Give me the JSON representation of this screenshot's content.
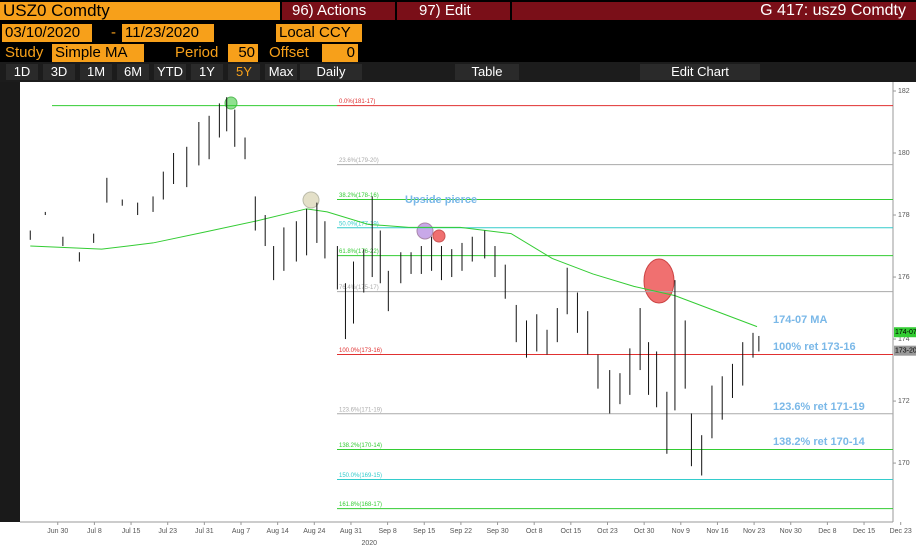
{
  "header": {
    "security": "USZ0 Comdty",
    "actions": "96) Actions",
    "edit": "97) Edit",
    "page": "G 417: usz9 Comdty"
  },
  "controls": {
    "start": "03/10/2020",
    "dash": "-",
    "end": "11/23/2020",
    "currency": "Local CCY",
    "study_label": "Study",
    "study": "Simple MA",
    "period_label": "Period",
    "period": "50",
    "offset_label": "Offset",
    "offset": "0"
  },
  "toolbar": {
    "ranges": [
      "1D",
      "3D",
      "1M",
      "6M",
      "YTD",
      "1Y",
      "5Y",
      "Max"
    ],
    "frequency": "Daily",
    "table": "Table",
    "edit_chart": "Edit Chart"
  },
  "chart_data": {
    "type": "ohlc",
    "xlabel": "2020",
    "xlim": [
      -1.03,
      22.79
    ],
    "xticks": [
      {
        "value": 0,
        "label": "Jun 30"
      },
      {
        "value": 1,
        "label": "Jul 8"
      },
      {
        "value": 2,
        "label": "Jul 15"
      },
      {
        "value": 3,
        "label": "Jul 23"
      },
      {
        "value": 4,
        "label": "Jul 31"
      },
      {
        "value": 5,
        "label": "Aug 7"
      },
      {
        "value": 6,
        "label": "Aug 14"
      },
      {
        "value": 7,
        "label": "Aug 24"
      },
      {
        "value": 8,
        "label": "Aug 31"
      },
      {
        "value": 9,
        "label": "Sep 8"
      },
      {
        "value": 10,
        "label": "Sep 15"
      },
      {
        "value": 11,
        "label": "Sep 22"
      },
      {
        "value": 12,
        "label": "Sep 30"
      },
      {
        "value": 13,
        "label": "Oct 8"
      },
      {
        "value": 14,
        "label": "Oct 15"
      },
      {
        "value": 15,
        "label": "Oct 23"
      },
      {
        "value": 16,
        "label": "Oct 30"
      },
      {
        "value": 17,
        "label": "Nov 9"
      },
      {
        "value": 18,
        "label": "Nov 16"
      },
      {
        "value": 19,
        "label": "Nov 23"
      },
      {
        "value": 20,
        "label": "Nov 30"
      },
      {
        "value": 21,
        "label": "Dec 8"
      },
      {
        "value": 22,
        "label": "Dec 15"
      },
      {
        "value": 23,
        "label": "Dec 23"
      }
    ],
    "ylim": [
      168.1,
      182.29
    ],
    "yticks": [
      170,
      172,
      174,
      176,
      178,
      180,
      182
    ],
    "bars": {
      "color": "#111111",
      "x": [
        -0.75,
        -0.34,
        0.14,
        0.59,
        0.98,
        1.34,
        1.76,
        2.18,
        2.6,
        2.88,
        3.16,
        3.52,
        3.85,
        4.13,
        4.41,
        4.61,
        4.83,
        5.11,
        5.39,
        5.66,
        5.89,
        6.17,
        6.51,
        6.79,
        7.07,
        7.29,
        7.63,
        7.85,
        8.07,
        8.35,
        8.58,
        8.8,
        9.02,
        9.36,
        9.64,
        9.92,
        10.2,
        10.47,
        10.75,
        11.03,
        11.31,
        11.65,
        11.93,
        12.21,
        12.51,
        12.79,
        13.07,
        13.35,
        13.63,
        13.9,
        14.18,
        14.46,
        14.74,
        15.06,
        15.34,
        15.61,
        15.89,
        16.12,
        16.34,
        16.62,
        16.84,
        17.12,
        17.29,
        17.57,
        17.85,
        18.13,
        18.41,
        18.69,
        18.97,
        19.13
      ],
      "high": [
        177.5,
        178.1,
        177.3,
        176.8,
        177.4,
        179.2,
        178.5,
        178.4,
        178.6,
        179.4,
        180.0,
        180.2,
        181.0,
        181.2,
        181.6,
        181.8,
        181.4,
        180.5,
        178.6,
        178.0,
        177.0,
        177.6,
        177.8,
        178.2,
        178.4,
        177.8,
        177.0,
        175.8,
        176.5,
        176.9,
        178.6,
        177.5,
        176.2,
        176.8,
        176.8,
        177.0,
        177.3,
        177.0,
        176.9,
        177.1,
        177.3,
        177.5,
        177.0,
        176.4,
        175.1,
        174.6,
        174.8,
        174.3,
        175.0,
        176.3,
        175.5,
        174.9,
        173.5,
        173.0,
        172.9,
        173.7,
        175.0,
        173.9,
        173.6,
        172.3,
        175.9,
        174.6,
        171.6,
        170.9,
        172.5,
        172.8,
        173.2,
        173.9,
        174.2,
        174.1
      ],
      "low": [
        177.2,
        178.0,
        177.0,
        176.5,
        177.1,
        178.4,
        178.3,
        178.0,
        178.1,
        178.5,
        179.0,
        178.9,
        179.6,
        179.8,
        180.5,
        180.7,
        180.2,
        179.8,
        177.5,
        177.0,
        175.9,
        176.2,
        176.5,
        176.7,
        177.1,
        176.6,
        175.6,
        174.0,
        174.5,
        175.5,
        176.0,
        175.8,
        174.9,
        175.8,
        176.1,
        176.1,
        176.2,
        175.9,
        176.0,
        176.2,
        176.5,
        176.6,
        176.0,
        175.3,
        173.9,
        173.4,
        173.6,
        173.5,
        173.9,
        174.8,
        174.2,
        173.5,
        172.4,
        171.6,
        171.9,
        172.2,
        173.0,
        172.2,
        171.8,
        170.3,
        171.7,
        172.4,
        169.9,
        169.6,
        170.8,
        171.4,
        172.1,
        172.5,
        173.4,
        173.6
      ]
    },
    "moving_average": {
      "color": "#33cc33",
      "x": [
        -0.75,
        1.2,
        2.6,
        4.0,
        5.39,
        6.79,
        7.35,
        8.47,
        9.58,
        10.98,
        12.37,
        13.49,
        14.6,
        15.72,
        16.84,
        17.96,
        19.08
      ],
      "values": [
        177.0,
        176.9,
        177.1,
        177.45,
        177.8,
        178.2,
        178.1,
        177.7,
        177.6,
        177.6,
        177.4,
        176.6,
        176.1,
        175.7,
        175.4,
        174.9,
        174.4
      ]
    },
    "levels": [
      {
        "label": "0.0%(181-17)",
        "value": 181.53,
        "color": "#e03030"
      },
      {
        "label": "23.6%(179-20)",
        "value": 179.625,
        "color": "#aaaaaa"
      },
      {
        "label": "38.2%(178-16)",
        "value": 178.5,
        "color": "#33cc33"
      },
      {
        "label": "50.0%(177-19)",
        "value": 177.59,
        "color": "#33cccc"
      },
      {
        "label": "61.8%(176-22)",
        "value": 176.69,
        "color": "#33cc33"
      },
      {
        "label": "76.4%(175-17)",
        "value": 175.53,
        "color": "#aaaaaa"
      },
      {
        "label": "100.0%(173-16)",
        "value": 173.5,
        "color": "#e03030"
      },
      {
        "label": "123.6%(171-19)",
        "value": 171.59,
        "color": "#aaaaaa"
      },
      {
        "label": "138.2%(170-14)",
        "value": 170.44,
        "color": "#33cc33"
      },
      {
        "label": "150.0%(169-15)",
        "value": 169.47,
        "color": "#33cccc"
      },
      {
        "label": "161.8%(168-17)",
        "value": 168.53,
        "color": "#33cc33"
      }
    ],
    "price_labels": [
      {
        "value": 174.22,
        "label": "174-07",
        "color": "#33cc33"
      },
      {
        "value": 173.625,
        "label": "173-20",
        "color": "#999999"
      }
    ],
    "annotations": [
      "Upside pierce",
      "174-07 MA",
      "100% ret 173-16",
      "123.6% ret 171-19",
      "138.2% ret 170-14"
    ]
  }
}
